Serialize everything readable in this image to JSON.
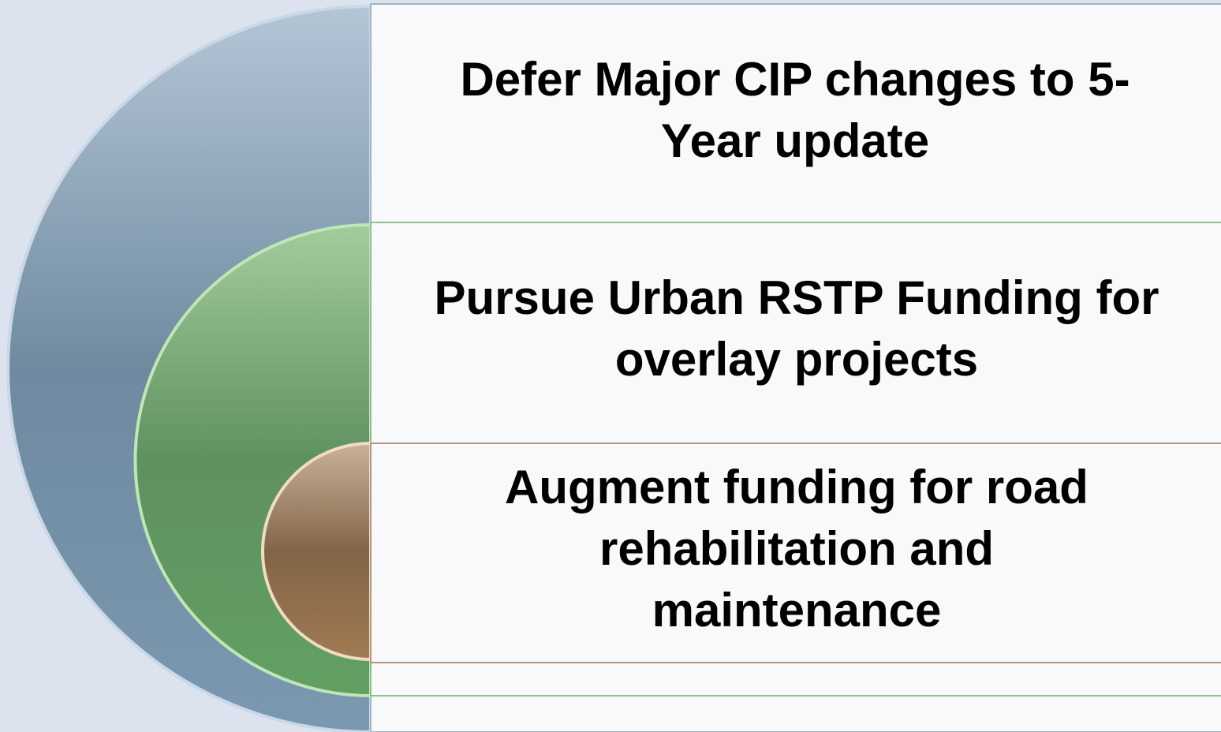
{
  "items": [
    {
      "lines": [
        "Defer Major CIP changes to 5-",
        "Year update"
      ]
    },
    {
      "lines": [
        "Pursue Urban RSTP Funding for",
        "overlay projects"
      ]
    },
    {
      "lines": [
        "Augment funding for road",
        "rehabilitation and",
        "maintenance"
      ]
    }
  ]
}
